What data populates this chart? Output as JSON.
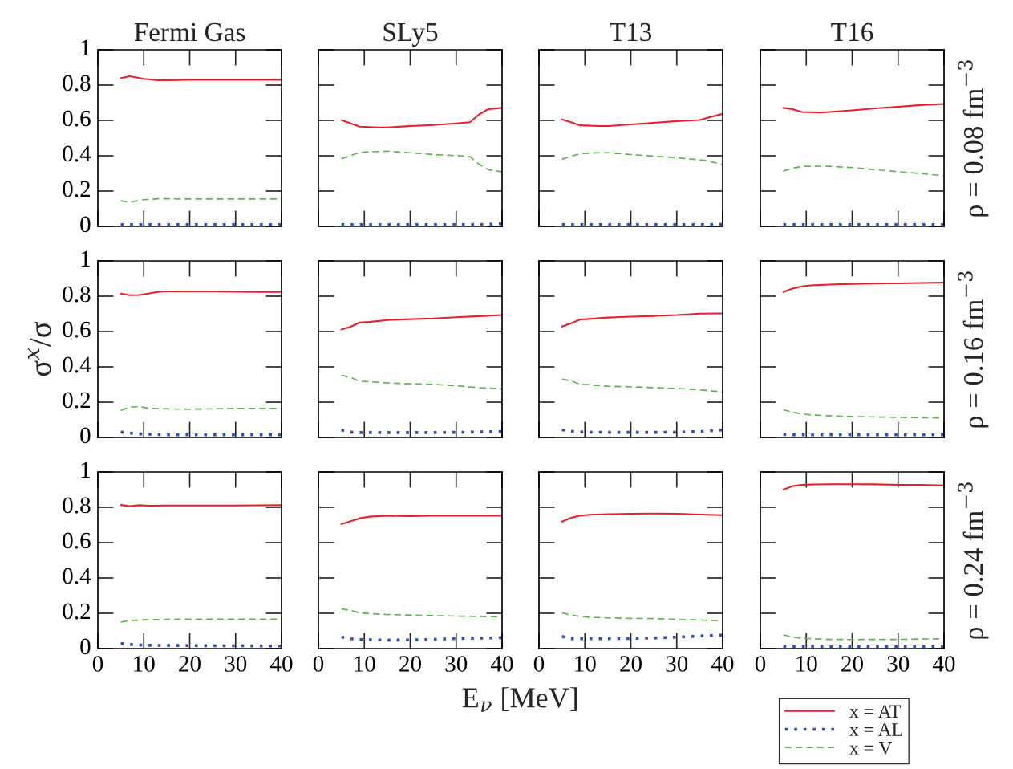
{
  "chart_data": [
    {
      "type": "line",
      "title": "Fermi Gas",
      "x": [
        5,
        7,
        10,
        13,
        15,
        20,
        25,
        30,
        35,
        37,
        40
      ],
      "xlim": [
        0,
        40
      ],
      "ylim": [
        0,
        1
      ],
      "xticks": [
        0,
        10,
        20,
        30,
        40
      ],
      "yticks": [
        0,
        0.2,
        0.4,
        0.6,
        0.8,
        1
      ],
      "tick_labels": "y",
      "series": [
        {
          "color": "#e8202a",
          "line_style": "solid",
          "values": [
            0.84,
            0.85,
            0.835,
            0.827,
            0.828,
            0.83,
            0.83,
            0.83,
            0.83,
            0.83,
            0.83
          ]
        },
        {
          "color": "#3050b0",
          "line_style": "dotted",
          "values": [
            0.01,
            0.01,
            0.01,
            0.01,
            0.01,
            0.01,
            0.01,
            0.01,
            0.01,
            0.01,
            0.01
          ]
        },
        {
          "color": "#5cb84a",
          "line_style": "dashed",
          "values": [
            0.145,
            0.137,
            0.151,
            0.156,
            0.156,
            0.155,
            0.155,
            0.155,
            0.155,
            0.155,
            0.155
          ]
        }
      ]
    },
    {
      "type": "line",
      "title": "SLy5",
      "x": [
        5,
        7,
        9,
        13,
        15,
        20,
        25,
        30,
        33,
        35,
        37,
        40
      ],
      "xlim": [
        0,
        40
      ],
      "ylim": [
        0,
        1
      ],
      "xticks": [
        0,
        10,
        20,
        30,
        40
      ],
      "yticks": [
        0,
        0.2,
        0.4,
        0.6,
        0.8,
        1
      ],
      "tick_labels": false,
      "series": [
        {
          "color": "#e8202a",
          "line_style": "solid",
          "values": [
            0.602,
            0.583,
            0.565,
            0.56,
            0.56,
            0.568,
            0.574,
            0.583,
            0.59,
            0.634,
            0.664,
            0.671
          ]
        },
        {
          "color": "#3050b0",
          "line_style": "dotted",
          "values": [
            0.01,
            0.01,
            0.01,
            0.01,
            0.01,
            0.01,
            0.01,
            0.01,
            0.01,
            0.01,
            0.012,
            0.015
          ]
        },
        {
          "color": "#5cb84a",
          "line_style": "dashed",
          "values": [
            0.383,
            0.4,
            0.42,
            0.424,
            0.426,
            0.417,
            0.407,
            0.401,
            0.395,
            0.352,
            0.321,
            0.309
          ]
        }
      ]
    },
    {
      "type": "line",
      "title": "T13",
      "x": [
        5,
        7,
        9,
        13,
        15,
        20,
        25,
        30,
        35,
        37,
        40
      ],
      "xlim": [
        0,
        40
      ],
      "ylim": [
        0,
        1
      ],
      "xticks": [
        0,
        10,
        20,
        30,
        40
      ],
      "yticks": [
        0,
        0.2,
        0.4,
        0.6,
        0.8,
        1
      ],
      "tick_labels": false,
      "series": [
        {
          "color": "#e8202a",
          "line_style": "solid",
          "values": [
            0.606,
            0.59,
            0.572,
            0.568,
            0.568,
            0.577,
            0.586,
            0.596,
            0.602,
            0.617,
            0.637
          ]
        },
        {
          "color": "#3050b0",
          "line_style": "dotted",
          "values": [
            0.01,
            0.01,
            0.01,
            0.01,
            0.01,
            0.01,
            0.01,
            0.01,
            0.01,
            0.01,
            0.012
          ]
        },
        {
          "color": "#5cb84a",
          "line_style": "dashed",
          "values": [
            0.38,
            0.398,
            0.412,
            0.417,
            0.417,
            0.407,
            0.398,
            0.389,
            0.377,
            0.37,
            0.349
          ]
        }
      ]
    },
    {
      "type": "line",
      "title": "T16",
      "annotations": [
        "ρ = 0.08 fm$^{−3}$"
      ],
      "x": [
        5,
        7,
        9,
        13,
        15,
        20,
        25,
        30,
        35,
        40
      ],
      "xlim": [
        0,
        40
      ],
      "ylim": [
        0,
        1
      ],
      "xticks": [
        0,
        10,
        20,
        30,
        40
      ],
      "yticks": [
        0,
        0.2,
        0.4,
        0.6,
        0.8,
        1
      ],
      "tick_labels": false,
      "series": [
        {
          "color": "#e8202a",
          "line_style": "solid",
          "values": [
            0.671,
            0.664,
            0.648,
            0.645,
            0.648,
            0.657,
            0.668,
            0.677,
            0.687,
            0.693
          ]
        },
        {
          "color": "#3050b0",
          "line_style": "dotted",
          "values": [
            0.01,
            0.01,
            0.01,
            0.01,
            0.01,
            0.01,
            0.01,
            0.01,
            0.01,
            0.01
          ]
        },
        {
          "color": "#5cb84a",
          "line_style": "dashed",
          "values": [
            0.313,
            0.329,
            0.34,
            0.341,
            0.34,
            0.333,
            0.321,
            0.31,
            0.299,
            0.287
          ]
        }
      ]
    },
    {
      "type": "line",
      "ylabel": "σ$^{x}$/σ",
      "x": [
        5,
        7,
        9,
        11,
        13,
        15,
        20,
        25,
        30,
        35,
        40
      ],
      "xlim": [
        0,
        40
      ],
      "ylim": [
        0,
        1
      ],
      "xticks": [
        0,
        10,
        20,
        30,
        40
      ],
      "yticks": [
        0,
        0.2,
        0.4,
        0.6,
        0.8,
        1
      ],
      "tick_labels": "y",
      "series": [
        {
          "color": "#e8202a",
          "line_style": "solid",
          "values": [
            0.815,
            0.806,
            0.807,
            0.815,
            0.824,
            0.827,
            0.826,
            0.826,
            0.825,
            0.824,
            0.824
          ]
        },
        {
          "color": "#3050b0",
          "line_style": "dotted",
          "values": [
            0.031,
            0.025,
            0.02,
            0.018,
            0.016,
            0.015,
            0.015,
            0.015,
            0.015,
            0.015,
            0.015
          ]
        },
        {
          "color": "#5cb84a",
          "line_style": "dashed",
          "values": [
            0.154,
            0.171,
            0.176,
            0.165,
            0.163,
            0.162,
            0.16,
            0.162,
            0.164,
            0.164,
            0.164
          ]
        }
      ]
    },
    {
      "type": "line",
      "x": [
        5,
        7,
        9,
        11,
        15,
        20,
        25,
        30,
        35,
        40
      ],
      "xlim": [
        0,
        40
      ],
      "ylim": [
        0,
        1
      ],
      "xticks": [
        0,
        10,
        20,
        30,
        40
      ],
      "yticks": [
        0,
        0.2,
        0.4,
        0.6,
        0.8,
        1
      ],
      "tick_labels": false,
      "series": [
        {
          "color": "#e8202a",
          "line_style": "solid",
          "values": [
            0.611,
            0.627,
            0.651,
            0.654,
            0.665,
            0.67,
            0.674,
            0.681,
            0.687,
            0.693
          ]
        },
        {
          "color": "#3050b0",
          "line_style": "dotted",
          "values": [
            0.042,
            0.03,
            0.028,
            0.028,
            0.028,
            0.028,
            0.028,
            0.029,
            0.031,
            0.034
          ]
        },
        {
          "color": "#5cb84a",
          "line_style": "dashed",
          "values": [
            0.352,
            0.34,
            0.318,
            0.316,
            0.309,
            0.304,
            0.301,
            0.293,
            0.282,
            0.275
          ]
        }
      ]
    },
    {
      "type": "line",
      "x": [
        5,
        7,
        9,
        11,
        15,
        20,
        25,
        30,
        35,
        40
      ],
      "xlim": [
        0,
        40
      ],
      "ylim": [
        0,
        1
      ],
      "xticks": [
        0,
        10,
        20,
        30,
        40
      ],
      "yticks": [
        0,
        0.2,
        0.4,
        0.6,
        0.8,
        1
      ],
      "tick_labels": false,
      "series": [
        {
          "color": "#e8202a",
          "line_style": "solid",
          "values": [
            0.628,
            0.647,
            0.668,
            0.671,
            0.679,
            0.684,
            0.688,
            0.693,
            0.701,
            0.702
          ]
        },
        {
          "color": "#3050b0",
          "line_style": "dotted",
          "values": [
            0.043,
            0.035,
            0.031,
            0.03,
            0.029,
            0.029,
            0.029,
            0.03,
            0.034,
            0.042
          ]
        },
        {
          "color": "#5cb84a",
          "line_style": "dashed",
          "values": [
            0.33,
            0.321,
            0.301,
            0.298,
            0.29,
            0.287,
            0.282,
            0.278,
            0.27,
            0.258
          ]
        }
      ]
    },
    {
      "type": "line",
      "annotations": [
        "ρ = 0.16 fm$^{−3}$"
      ],
      "x": [
        5,
        7,
        9,
        11,
        15,
        20,
        25,
        30,
        35,
        40
      ],
      "xlim": [
        0,
        40
      ],
      "ylim": [
        0,
        1
      ],
      "xticks": [
        0,
        10,
        20,
        30,
        40
      ],
      "yticks": [
        0,
        0.2,
        0.4,
        0.6,
        0.8,
        1
      ],
      "tick_labels": false,
      "series": [
        {
          "color": "#e8202a",
          "line_style": "solid",
          "values": [
            0.824,
            0.843,
            0.856,
            0.861,
            0.866,
            0.87,
            0.872,
            0.873,
            0.875,
            0.877
          ]
        },
        {
          "color": "#3050b0",
          "line_style": "dotted",
          "values": [
            0.017,
            0.015,
            0.015,
            0.015,
            0.015,
            0.015,
            0.015,
            0.015,
            0.015,
            0.015
          ]
        },
        {
          "color": "#5cb84a",
          "line_style": "dashed",
          "values": [
            0.157,
            0.144,
            0.133,
            0.128,
            0.123,
            0.119,
            0.116,
            0.114,
            0.112,
            0.11
          ]
        }
      ]
    },
    {
      "type": "line",
      "x": [
        5,
        7,
        9,
        11,
        15,
        20,
        25,
        30,
        35,
        40
      ],
      "xlim": [
        0,
        40
      ],
      "ylim": [
        0,
        1
      ],
      "xticks": [
        0,
        10,
        20,
        30,
        40
      ],
      "yticks": [
        0,
        0.2,
        0.4,
        0.6,
        0.8,
        1
      ],
      "series": [
        {
          "color": "#e8202a",
          "line_style": "solid",
          "values": [
            0.813,
            0.807,
            0.812,
            0.809,
            0.81,
            0.81,
            0.81,
            0.81,
            0.811,
            0.812
          ]
        },
        {
          "color": "#3050b0",
          "line_style": "dotted",
          "values": [
            0.029,
            0.024,
            0.02,
            0.019,
            0.018,
            0.017,
            0.016,
            0.016,
            0.015,
            0.015
          ]
        },
        {
          "color": "#5cb84a",
          "line_style": "dashed",
          "values": [
            0.15,
            0.159,
            0.161,
            0.164,
            0.165,
            0.167,
            0.167,
            0.167,
            0.167,
            0.167
          ]
        }
      ]
    },
    {
      "type": "line",
      "xlabel": "E$_{ν}$ [MeV]",
      "x": [
        5,
        7,
        9,
        11,
        15,
        20,
        25,
        30,
        35,
        40
      ],
      "xlim": [
        0,
        40
      ],
      "ylim": [
        0,
        1
      ],
      "xticks": [
        0,
        10,
        20,
        30,
        40
      ],
      "yticks": [
        0,
        0.2,
        0.4,
        0.6,
        0.8,
        1
      ],
      "tick_labels": "x",
      "series": [
        {
          "color": "#e8202a",
          "line_style": "solid",
          "values": [
            0.705,
            0.722,
            0.738,
            0.747,
            0.752,
            0.75,
            0.753,
            0.753,
            0.753,
            0.753
          ]
        },
        {
          "color": "#3050b0",
          "line_style": "dotted",
          "values": [
            0.065,
            0.056,
            0.051,
            0.05,
            0.048,
            0.049,
            0.052,
            0.057,
            0.059,
            0.062
          ]
        },
        {
          "color": "#5cb84a",
          "line_style": "dashed",
          "values": [
            0.225,
            0.216,
            0.202,
            0.198,
            0.193,
            0.19,
            0.187,
            0.184,
            0.182,
            0.179
          ]
        }
      ]
    },
    {
      "type": "line",
      "x": [
        5,
        7,
        9,
        11,
        15,
        20,
        25,
        30,
        35,
        40
      ],
      "xlim": [
        0,
        40
      ],
      "ylim": [
        0,
        1
      ],
      "xticks": [
        0,
        10,
        20,
        30,
        40
      ],
      "yticks": [
        0,
        0.2,
        0.4,
        0.6,
        0.8,
        1
      ],
      "tick_labels": "x",
      "series": [
        {
          "color": "#e8202a",
          "line_style": "solid",
          "values": [
            0.719,
            0.741,
            0.753,
            0.758,
            0.761,
            0.764,
            0.765,
            0.764,
            0.759,
            0.756
          ]
        },
        {
          "color": "#3050b0",
          "line_style": "dotted",
          "values": [
            0.069,
            0.056,
            0.056,
            0.056,
            0.056,
            0.057,
            0.06,
            0.065,
            0.071,
            0.077
          ]
        },
        {
          "color": "#5cb84a",
          "line_style": "dashed",
          "values": [
            0.202,
            0.19,
            0.182,
            0.177,
            0.174,
            0.171,
            0.17,
            0.165,
            0.162,
            0.157
          ]
        }
      ]
    },
    {
      "type": "line",
      "annotations": [
        "ρ = 0.24 fm$^{−3}$"
      ],
      "legend": "bottom right",
      "x": [
        5,
        7,
        9,
        11,
        15,
        20,
        25,
        30,
        35,
        40
      ],
      "xlim": [
        0,
        40
      ],
      "ylim": [
        0,
        1
      ],
      "xticks": [
        0,
        10,
        20,
        30,
        40
      ],
      "yticks": [
        0,
        0.2,
        0.4,
        0.6,
        0.8,
        1
      ],
      "tick_labels": "x",
      "series": [
        {
          "name": "x = AT",
          "color": "#e8202a",
          "line_style": "solid",
          "values": [
            0.9,
            0.92,
            0.927,
            0.929,
            0.931,
            0.931,
            0.93,
            0.927,
            0.927,
            0.924
          ]
        },
        {
          "name": "x = AL",
          "color": "#3050b0",
          "line_style": "dotted",
          "values": [
            0.013,
            0.012,
            0.012,
            0.012,
            0.012,
            0.012,
            0.012,
            0.012,
            0.012,
            0.012
          ]
        },
        {
          "name": "x = V",
          "color": "#5cb84a",
          "line_style": "dashed",
          "values": [
            0.077,
            0.065,
            0.059,
            0.056,
            0.052,
            0.051,
            0.052,
            0.052,
            0.054,
            0.056
          ]
        }
      ]
    }
  ]
}
